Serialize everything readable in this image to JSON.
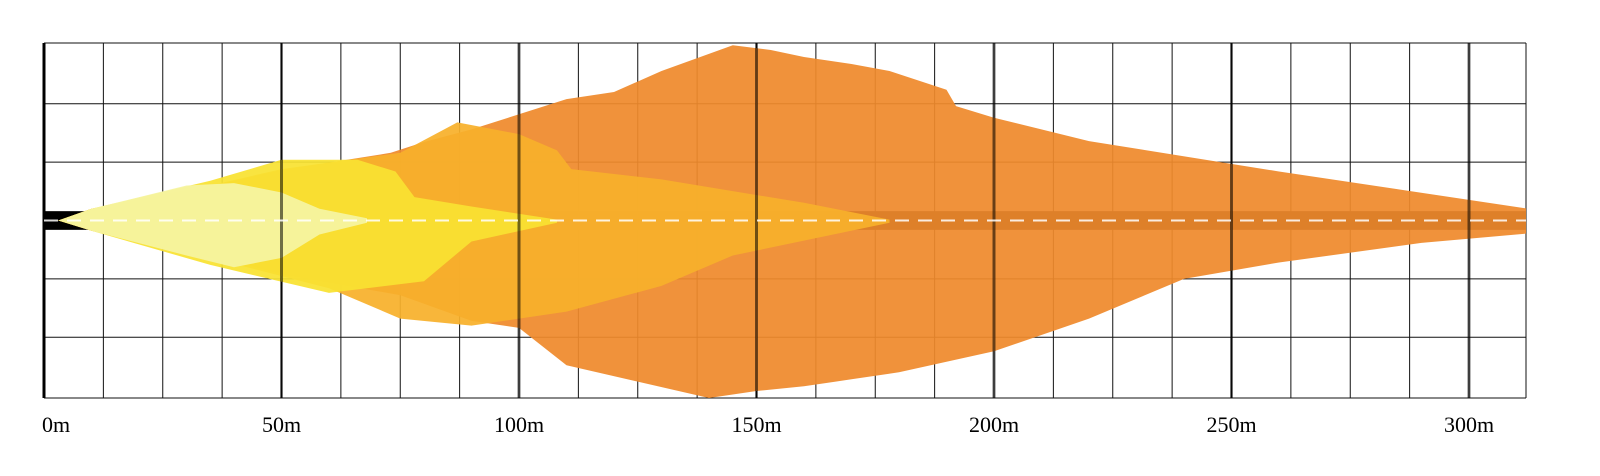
{
  "chart_data": {
    "type": "area",
    "title": "",
    "xlabel": "",
    "ylabel": "",
    "xlim": [
      0,
      312
    ],
    "ylim": [
      -38,
      38
    ],
    "x_ticks": [
      0,
      50,
      100,
      150,
      200,
      250,
      300
    ],
    "x_tick_labels": [
      "0m",
      "50m",
      "100m",
      "150m",
      "200m",
      "250m",
      "300m"
    ],
    "y_ticks": [
      -25,
      -12.5,
      0,
      12.5,
      25
    ],
    "minor_x_step": 12.5,
    "grid": true,
    "legend": "none",
    "road": {
      "halfwidth": 2,
      "from": 0,
      "to": 312,
      "centerline": "dashed"
    },
    "series": [
      {
        "color": "#EF8A2C",
        "upper": [
          [
            3,
            0
          ],
          [
            10,
            2.5
          ],
          [
            30,
            6.2
          ],
          [
            50,
            10.8
          ],
          [
            73,
            14.5
          ],
          [
            80,
            16.8
          ],
          [
            90,
            19.5
          ],
          [
            110,
            26
          ],
          [
            120,
            27.5
          ],
          [
            130,
            32
          ],
          [
            145,
            37.5
          ],
          [
            153,
            36.5
          ],
          [
            160,
            35
          ],
          [
            170,
            33.5
          ],
          [
            178,
            32
          ],
          [
            190,
            28
          ],
          [
            192,
            24.5
          ],
          [
            200,
            22
          ],
          [
            220,
            17
          ],
          [
            260,
            10.5
          ],
          [
            312,
            2.6
          ]
        ],
        "lower": [
          [
            3,
            0
          ],
          [
            10,
            -2.2
          ],
          [
            30,
            -6
          ],
          [
            50,
            -11.5
          ],
          [
            75,
            -16
          ],
          [
            90,
            -21.5
          ],
          [
            100,
            -23
          ],
          [
            110,
            -31
          ],
          [
            140,
            -38
          ],
          [
            150,
            -36.5
          ],
          [
            160,
            -35.5
          ],
          [
            170,
            -34
          ],
          [
            180,
            -32.5
          ],
          [
            200,
            -28
          ],
          [
            220,
            -21
          ],
          [
            240,
            -12.5
          ],
          [
            260,
            -9
          ],
          [
            290,
            -4.8
          ],
          [
            312,
            -2.8
          ]
        ]
      },
      {
        "color": "#F8B02B",
        "upper": [
          [
            3,
            0
          ],
          [
            10,
            2.5
          ],
          [
            35,
            7.5
          ],
          [
            50,
            11
          ],
          [
            75,
            14.5
          ],
          [
            87,
            21
          ],
          [
            100,
            18.5
          ],
          [
            108,
            15
          ],
          [
            111,
            11
          ],
          [
            130,
            8.8
          ],
          [
            160,
            3.8
          ],
          [
            178,
            0.2
          ]
        ],
        "lower": [
          [
            3,
            0
          ],
          [
            10,
            -2.2
          ],
          [
            35,
            -8
          ],
          [
            60,
            -14.5
          ],
          [
            75,
            -21
          ],
          [
            90,
            -22.5
          ],
          [
            110,
            -19.5
          ],
          [
            130,
            -14
          ],
          [
            145,
            -7.5
          ],
          [
            178,
            -0.5
          ]
        ]
      },
      {
        "color": "#F9E231",
        "upper": [
          [
            3,
            0
          ],
          [
            10,
            2.5
          ],
          [
            35,
            8.5
          ],
          [
            50,
            13
          ],
          [
            66,
            13
          ],
          [
            74,
            10.5
          ],
          [
            78,
            5
          ],
          [
            90,
            3
          ],
          [
            108,
            0.2
          ]
        ],
        "lower": [
          [
            3,
            0
          ],
          [
            10,
            -2.2
          ],
          [
            35,
            -9.5
          ],
          [
            60,
            -15.5
          ],
          [
            80,
            -13
          ],
          [
            90,
            -4.5
          ],
          [
            108,
            -0.5
          ]
        ]
      },
      {
        "color": "#F5F4A2",
        "upper": [
          [
            3,
            0
          ],
          [
            10,
            2.5
          ],
          [
            30,
            7.5
          ],
          [
            40,
            8
          ],
          [
            50,
            6
          ],
          [
            58,
            2.5
          ],
          [
            68,
            0.5
          ]
        ],
        "lower": [
          [
            3,
            0
          ],
          [
            10,
            -2.2
          ],
          [
            30,
            -7.5
          ],
          [
            40,
            -10
          ],
          [
            50,
            -8
          ],
          [
            58,
            -3
          ],
          [
            68,
            -0.5
          ]
        ]
      }
    ]
  }
}
